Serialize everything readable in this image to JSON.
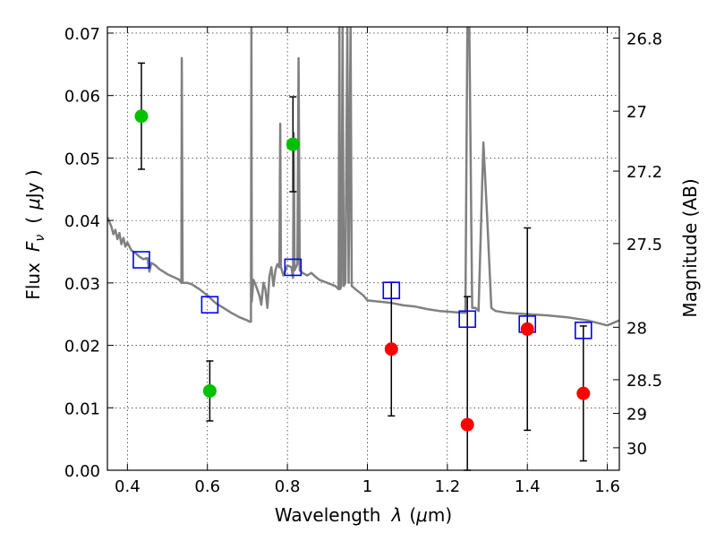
{
  "chart_data": {
    "type": "scatter",
    "xlabel": "Wavelength",
    "xlabel_symbol": "λ",
    "xlabel_unit_open": "(",
    "xlabel_unit_mu": "μ",
    "xlabel_unit_rest": "m)",
    "ylabel": "Flux",
    "ylabel_symbol": "F",
    "ylabel_symbol_sub": "ν",
    "ylabel_unit_open": "(",
    "ylabel_unit_mu": "μ",
    "ylabel_unit_rest": "Jy )",
    "y2label": "Magnitude (AB)",
    "xlim": [
      0.35,
      1.63
    ],
    "ylim": [
      0.0,
      0.071
    ],
    "x_ticks": [
      0.4,
      0.6,
      0.8,
      1.0,
      1.2,
      1.4,
      1.6
    ],
    "x_tick_labels": [
      "0.4",
      "0.6",
      "0.8",
      "1",
      "1.2",
      "1.4",
      "1.6"
    ],
    "y_ticks": [
      0.0,
      0.01,
      0.02,
      0.03,
      0.04,
      0.05,
      0.06,
      0.07
    ],
    "y_tick_labels": [
      "0.00",
      "0.01",
      "0.02",
      "0.03",
      "0.04",
      "0.05",
      "0.06",
      "0.07"
    ],
    "y2_tick_labels": [
      "26.8",
      "27",
      "27.2",
      "27.5",
      "28",
      "28.5",
      "29",
      "30"
    ],
    "y2_tick_flux": [
      0.0692,
      0.0575,
      0.0479,
      0.0363,
      0.0229,
      0.0145,
      0.0091,
      0.0036
    ],
    "grid": true,
    "colors": {
      "model": "#808080",
      "model_photometry": "#0000ff",
      "detection": "#00c000",
      "nondetection": "#ff0000",
      "errorbar": "#000000"
    },
    "series": [
      {
        "points": [
          {
            "x": 0.435,
            "y": 0.0567,
            "err": 0.0085
          },
          {
            "x": 0.606,
            "y": 0.0127,
            "err": 0.0048
          },
          {
            "x": 0.814,
            "y": 0.0522,
            "err": 0.0076
          }
        ]
      },
      {
        "points": [
          {
            "x": 1.06,
            "y": 0.0194,
            "err": 0.0107
          },
          {
            "x": 1.25,
            "y": 0.0073,
            "err": 0.0205
          },
          {
            "x": 1.4,
            "y": 0.0226,
            "err": 0.0162
          },
          {
            "x": 1.54,
            "y": 0.0123,
            "err": 0.0108
          }
        ]
      },
      {
        "points": [
          {
            "x": 0.435,
            "y": 0.0337
          },
          {
            "x": 0.606,
            "y": 0.0265
          },
          {
            "x": 0.814,
            "y": 0.0325
          },
          {
            "x": 1.06,
            "y": 0.0288
          },
          {
            "x": 1.25,
            "y": 0.0242
          },
          {
            "x": 1.4,
            "y": 0.0234
          },
          {
            "x": 1.54,
            "y": 0.0224
          }
        ]
      },
      {
        "line": [
          [
            0.35,
            0.0405
          ],
          [
            0.36,
            0.039
          ],
          [
            0.365,
            0.0378
          ],
          [
            0.37,
            0.0385
          ],
          [
            0.375,
            0.037
          ],
          [
            0.38,
            0.038
          ],
          [
            0.385,
            0.0362
          ],
          [
            0.39,
            0.0372
          ],
          [
            0.395,
            0.0358
          ],
          [
            0.4,
            0.0365
          ],
          [
            0.41,
            0.0352
          ],
          [
            0.42,
            0.0348
          ],
          [
            0.43,
            0.0342
          ],
          [
            0.44,
            0.0338
          ],
          [
            0.45,
            0.034
          ],
          [
            0.455,
            0.0318
          ],
          [
            0.46,
            0.0332
          ],
          [
            0.47,
            0.0328
          ],
          [
            0.48,
            0.0322
          ],
          [
            0.49,
            0.0318
          ],
          [
            0.5,
            0.0314
          ],
          [
            0.51,
            0.0311
          ],
          [
            0.52,
            0.0308
          ],
          [
            0.53,
            0.0305
          ],
          [
            0.535,
            0.03
          ],
          [
            0.536,
            0.066
          ],
          [
            0.538,
            0.03
          ],
          [
            0.55,
            0.03
          ],
          [
            0.56,
            0.0298
          ],
          [
            0.58,
            0.029
          ],
          [
            0.6,
            0.028
          ],
          [
            0.62,
            0.0268
          ],
          [
            0.64,
            0.026
          ],
          [
            0.66,
            0.0252
          ],
          [
            0.68,
            0.0245
          ],
          [
            0.7,
            0.024
          ],
          [
            0.705,
            0.0238
          ],
          [
            0.709,
            0.0238
          ],
          [
            0.71,
            0.071
          ],
          [
            0.711,
            0.027
          ],
          [
            0.715,
            0.0305
          ],
          [
            0.72,
            0.0298
          ],
          [
            0.73,
            0.028
          ],
          [
            0.735,
            0.0265
          ],
          [
            0.74,
            0.03
          ],
          [
            0.745,
            0.029
          ],
          [
            0.75,
            0.026
          ],
          [
            0.755,
            0.031
          ],
          [
            0.76,
            0.0325
          ],
          [
            0.765,
            0.0295
          ],
          [
            0.77,
            0.032
          ],
          [
            0.775,
            0.033
          ],
          [
            0.78,
            0.0325
          ],
          [
            0.782,
            0.0555
          ],
          [
            0.784,
            0.0325
          ],
          [
            0.79,
            0.0312
          ],
          [
            0.8,
            0.0328
          ],
          [
            0.81,
            0.0325
          ],
          [
            0.814,
            0.0308
          ],
          [
            0.816,
            0.054
          ],
          [
            0.818,
            0.032
          ],
          [
            0.825,
            0.033
          ],
          [
            0.828,
            0.066
          ],
          [
            0.831,
            0.032
          ],
          [
            0.84,
            0.0315
          ],
          [
            0.85,
            0.0312
          ],
          [
            0.86,
            0.0316
          ],
          [
            0.87,
            0.031
          ],
          [
            0.88,
            0.0305
          ],
          [
            0.9,
            0.03
          ],
          [
            0.92,
            0.0295
          ],
          [
            0.928,
            0.029
          ],
          [
            0.93,
            0.071
          ],
          [
            0.932,
            0.029
          ],
          [
            0.935,
            0.0295
          ],
          [
            0.938,
            0.071
          ],
          [
            0.941,
            0.0295
          ],
          [
            0.945,
            0.03
          ],
          [
            0.95,
            0.071
          ],
          [
            0.953,
            0.03
          ],
          [
            0.958,
            0.071
          ],
          [
            0.961,
            0.0295
          ],
          [
            0.97,
            0.029
          ],
          [
            0.99,
            0.028
          ],
          [
            1.0,
            0.0272
          ],
          [
            1.03,
            0.027
          ],
          [
            1.06,
            0.0268
          ],
          [
            1.09,
            0.0264
          ],
          [
            1.12,
            0.0262
          ],
          [
            1.15,
            0.0258
          ],
          [
            1.18,
            0.0255
          ],
          [
            1.2,
            0.0254
          ],
          [
            1.22,
            0.0253
          ],
          [
            1.245,
            0.0252
          ],
          [
            1.25,
            0.071
          ],
          [
            1.255,
            0.071
          ],
          [
            1.26,
            0.038
          ],
          [
            1.262,
            0.026
          ],
          [
            1.27,
            0.026
          ],
          [
            1.278,
            0.0255
          ],
          [
            1.29,
            0.0525
          ],
          [
            1.3,
            0.04
          ],
          [
            1.31,
            0.026
          ],
          [
            1.32,
            0.0255
          ],
          [
            1.35,
            0.0252
          ],
          [
            1.4,
            0.025
          ],
          [
            1.45,
            0.0248
          ],
          [
            1.5,
            0.0245
          ],
          [
            1.55,
            0.024
          ],
          [
            1.6,
            0.0232
          ],
          [
            1.63,
            0.024
          ]
        ]
      }
    ]
  }
}
